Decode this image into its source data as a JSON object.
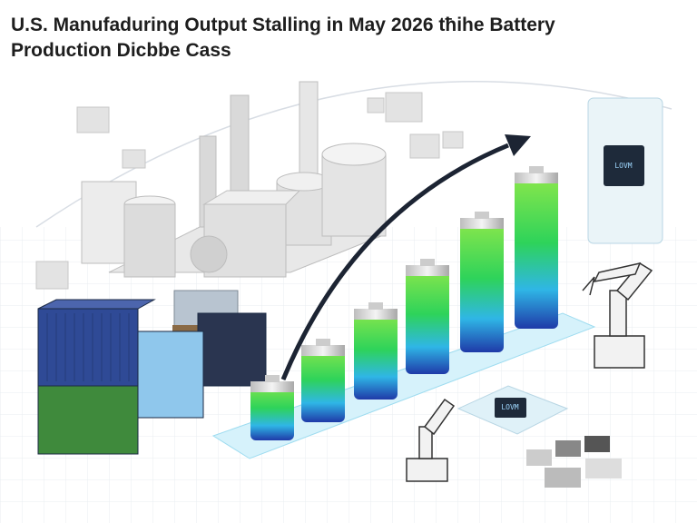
{
  "header": {
    "title_lines": [
      "U.S. Manufaduring Output Stalling in May 2026 tħihe Battery",
      "Production Dicbbe Cass"
    ]
  },
  "illustration": {
    "chip_labels": [
      "LOVM",
      "LOVM"
    ]
  }
}
